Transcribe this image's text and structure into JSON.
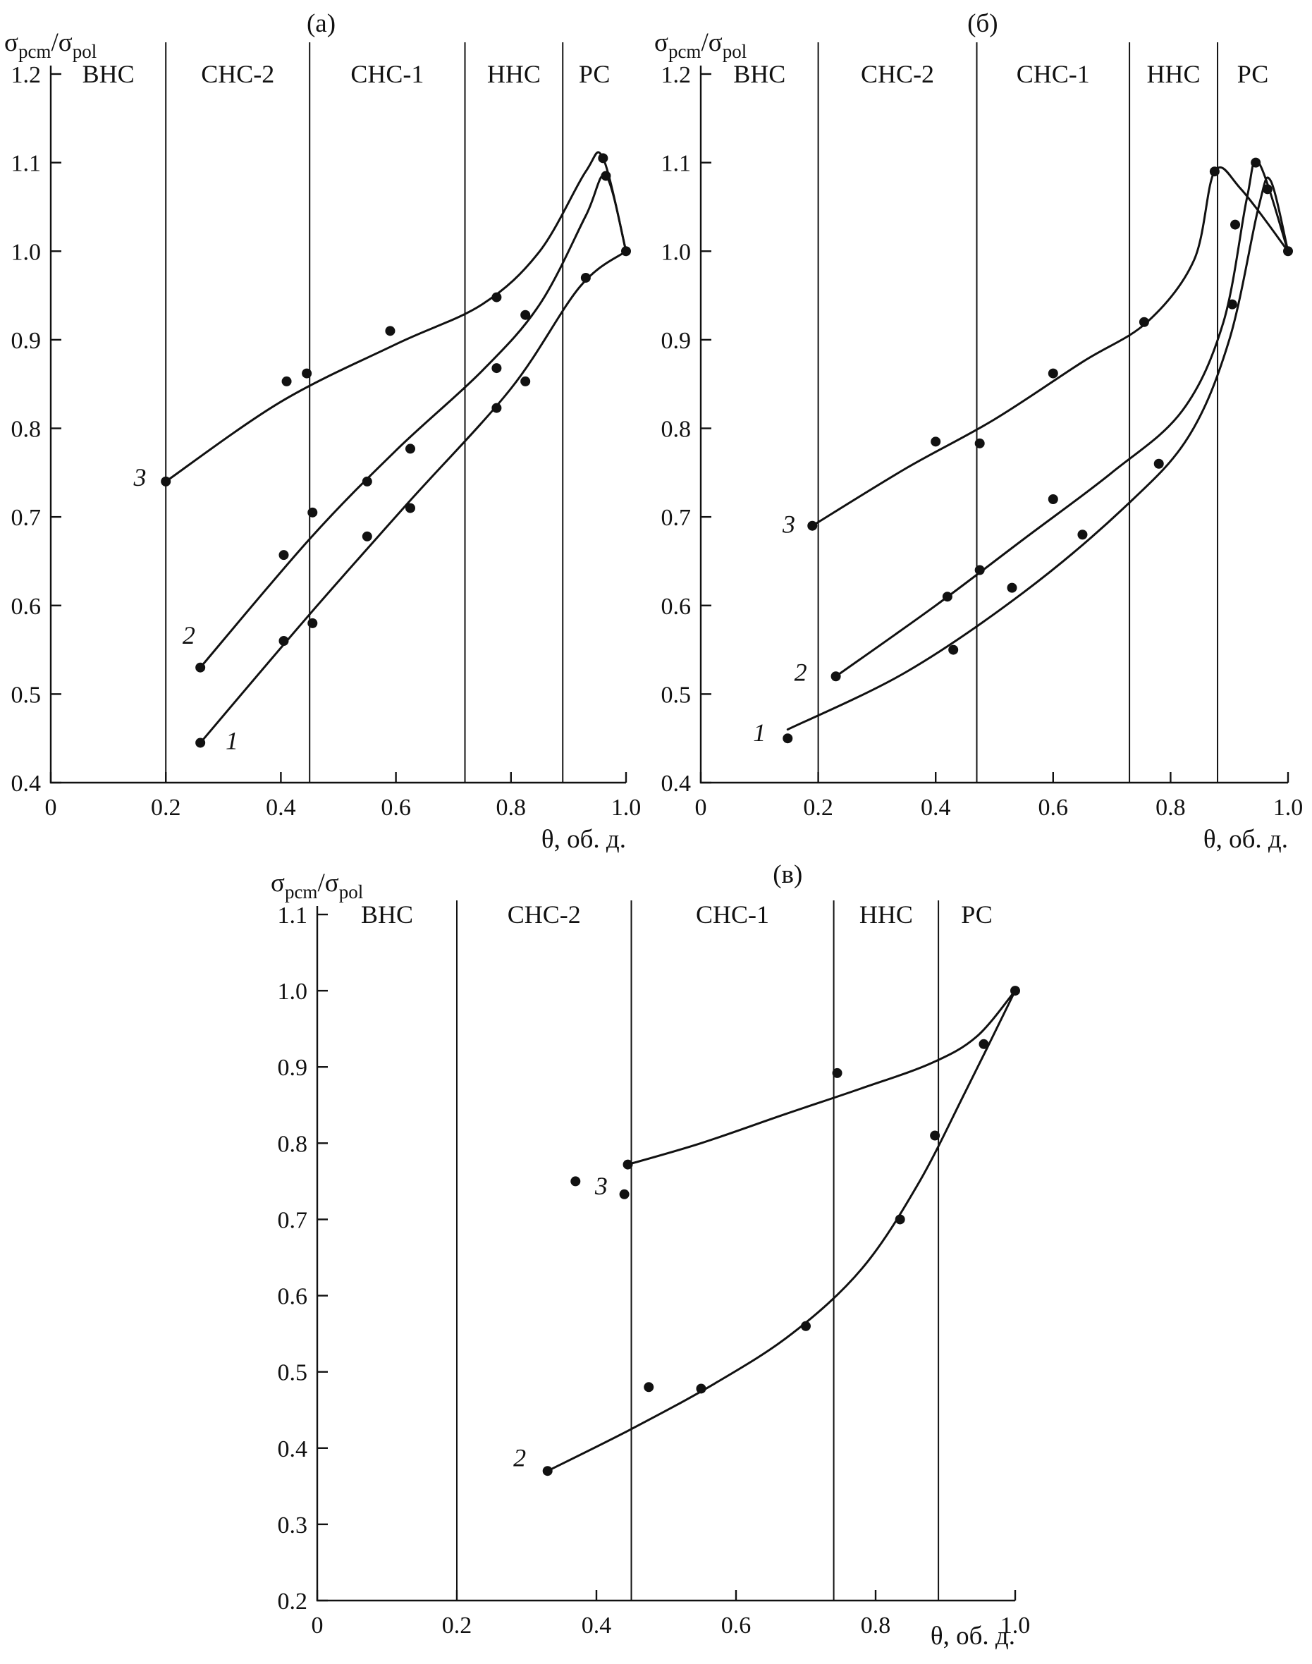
{
  "figure": {
    "panel_titles": [
      "(а)",
      "(б)",
      "(в)"
    ],
    "ink_color": "#111111",
    "background_color": "#ffffff"
  },
  "chart_data": [
    {
      "id": "a",
      "type": "scatter",
      "title": "(а)",
      "ylabel": "σ_{pcm}/σ_{pol}",
      "xlabel": "θ, об. д.",
      "xlim": [
        0,
        1.0
      ],
      "ylim": [
        0.4,
        1.2
      ],
      "x_ticks": [
        "0",
        "0.2",
        "0.4",
        "0.6",
        "0.8",
        "1.0"
      ],
      "y_ticks": [
        "0.4",
        "0.5",
        "0.6",
        "0.7",
        "0.8",
        "0.9",
        "1.0",
        "1.1",
        "1.2"
      ],
      "grid": false,
      "legend": "inline-curve-numbers",
      "region_boundaries": [
        0.2,
        0.45,
        0.72,
        0.89
      ],
      "region_labels": [
        "ВНС",
        "СНС-2",
        "СНС-1",
        "ННС",
        "РС"
      ],
      "series": [
        {
          "label": "1",
          "label_pos": [
            0.315,
            0.438
          ],
          "points": [
            [
              0.26,
              0.445
            ],
            [
              0.405,
              0.56
            ],
            [
              0.455,
              0.58
            ],
            [
              0.55,
              0.678
            ],
            [
              0.625,
              0.71
            ],
            [
              0.775,
              0.823
            ],
            [
              0.825,
              0.853
            ],
            [
              0.93,
              0.97
            ],
            [
              1.0,
              1.0
            ]
          ],
          "curve": [
            [
              0.26,
              0.445
            ],
            [
              0.45,
              0.59
            ],
            [
              0.62,
              0.715
            ],
            [
              0.8,
              0.845
            ],
            [
              0.92,
              0.96
            ],
            [
              1.0,
              1.0
            ]
          ]
        },
        {
          "label": "2",
          "label_pos": [
            0.24,
            0.557
          ],
          "points": [
            [
              0.26,
              0.53
            ],
            [
              0.405,
              0.657
            ],
            [
              0.455,
              0.705
            ],
            [
              0.55,
              0.74
            ],
            [
              0.625,
              0.777
            ],
            [
              0.775,
              0.868
            ],
            [
              0.825,
              0.928
            ],
            [
              0.965,
              1.085
            ]
          ],
          "curve": [
            [
              0.26,
              0.53
            ],
            [
              0.45,
              0.675
            ],
            [
              0.6,
              0.775
            ],
            [
              0.75,
              0.865
            ],
            [
              0.85,
              0.94
            ],
            [
              0.93,
              1.04
            ],
            [
              0.965,
              1.085
            ],
            [
              1.0,
              1.0
            ]
          ]
        },
        {
          "label": "3",
          "label_pos": [
            0.155,
            0.735
          ],
          "points": [
            [
              0.2,
              0.74
            ],
            [
              0.41,
              0.853
            ],
            [
              0.445,
              0.862
            ],
            [
              0.59,
              0.91
            ],
            [
              0.775,
              0.948
            ],
            [
              0.96,
              1.105
            ]
          ],
          "curve": [
            [
              0.2,
              0.74
            ],
            [
              0.4,
              0.83
            ],
            [
              0.6,
              0.895
            ],
            [
              0.75,
              0.94
            ],
            [
              0.85,
              1.0
            ],
            [
              0.93,
              1.09
            ],
            [
              0.96,
              1.105
            ],
            [
              1.0,
              1.0
            ]
          ]
        }
      ]
    },
    {
      "id": "b",
      "type": "scatter",
      "title": "(б)",
      "ylabel": "σ_{pcm}/σ_{pol}",
      "xlabel": "θ, об. д.",
      "xlim": [
        0,
        1.0
      ],
      "ylim": [
        0.4,
        1.2
      ],
      "x_ticks": [
        "0",
        "0.2",
        "0.4",
        "0.6",
        "0.8",
        "1.0"
      ],
      "y_ticks": [
        "0.4",
        "0.5",
        "0.6",
        "0.7",
        "0.8",
        "0.9",
        "1.0",
        "1.1",
        "1.2"
      ],
      "grid": false,
      "legend": "inline-curve-numbers",
      "region_boundaries": [
        0.2,
        0.47,
        0.73,
        0.88
      ],
      "region_labels": [
        "ВНС",
        "СНС-2",
        "СНС-1",
        "ННС",
        "РС"
      ],
      "series": [
        {
          "label": "1",
          "label_pos": [
            0.1,
            0.447
          ],
          "points": [
            [
              0.148,
              0.45
            ],
            [
              0.43,
              0.55
            ],
            [
              0.53,
              0.62
            ],
            [
              0.65,
              0.68
            ],
            [
              0.78,
              0.76
            ],
            [
              0.905,
              0.94
            ],
            [
              0.965,
              1.07
            ]
          ],
          "curve": [
            [
              0.148,
              0.46
            ],
            [
              0.35,
              0.525
            ],
            [
              0.55,
              0.615
            ],
            [
              0.72,
              0.71
            ],
            [
              0.83,
              0.79
            ],
            [
              0.9,
              0.9
            ],
            [
              0.95,
              1.05
            ],
            [
              0.97,
              1.08
            ],
            [
              1.0,
              1.0
            ]
          ]
        },
        {
          "label": "2",
          "label_pos": [
            0.17,
            0.515
          ],
          "points": [
            [
              0.23,
              0.52
            ],
            [
              0.42,
              0.61
            ],
            [
              0.475,
              0.64
            ],
            [
              0.6,
              0.72
            ],
            [
              0.91,
              1.03
            ],
            [
              0.945,
              1.1
            ]
          ],
          "curve": [
            [
              0.23,
              0.52
            ],
            [
              0.4,
              0.6
            ],
            [
              0.55,
              0.675
            ],
            [
              0.7,
              0.75
            ],
            [
              0.82,
              0.82
            ],
            [
              0.89,
              0.92
            ],
            [
              0.93,
              1.06
            ],
            [
              0.95,
              1.1
            ],
            [
              1.0,
              1.0
            ]
          ]
        },
        {
          "label": "3",
          "label_pos": [
            0.15,
            0.682
          ],
          "points": [
            [
              0.19,
              0.69
            ],
            [
              0.4,
              0.785
            ],
            [
              0.475,
              0.783
            ],
            [
              0.6,
              0.862
            ],
            [
              0.755,
              0.92
            ],
            [
              0.875,
              1.09
            ],
            [
              1.0,
              1.0
            ]
          ],
          "curve": [
            [
              0.19,
              0.69
            ],
            [
              0.35,
              0.755
            ],
            [
              0.5,
              0.81
            ],
            [
              0.65,
              0.875
            ],
            [
              0.76,
              0.92
            ],
            [
              0.84,
              0.99
            ],
            [
              0.875,
              1.09
            ],
            [
              0.92,
              1.07
            ],
            [
              1.0,
              1.0
            ]
          ]
        }
      ]
    },
    {
      "id": "v",
      "type": "scatter",
      "title": "(в)",
      "ylabel": "σ_{pcm}/σ_{pol}",
      "xlabel": "θ, об. д.",
      "xlim": [
        0,
        1.0
      ],
      "ylim": [
        0.2,
        1.1
      ],
      "x_ticks": [
        "0",
        "0.2",
        "0.4",
        "0.6",
        "0.8",
        "1.0"
      ],
      "y_ticks": [
        "0.2",
        "0.3",
        "0.4",
        "0.5",
        "0.6",
        "0.7",
        "0.8",
        "0.9",
        "1.0",
        "1.1"
      ],
      "grid": false,
      "legend": "inline-curve-numbers",
      "region_boundaries": [
        0.2,
        0.45,
        0.74,
        0.89
      ],
      "region_labels": [
        "ВНС",
        "СНС-2",
        "СНС-1",
        "ННС",
        "РС"
      ],
      "series": [
        {
          "label": "2",
          "label_pos": [
            0.29,
            0.376
          ],
          "points": [
            [
              0.33,
              0.37
            ],
            [
              0.475,
              0.48
            ],
            [
              0.55,
              0.478
            ],
            [
              0.7,
              0.56
            ],
            [
              0.835,
              0.7
            ],
            [
              0.885,
              0.81
            ]
          ],
          "curve": [
            [
              0.33,
              0.37
            ],
            [
              0.45,
              0.425
            ],
            [
              0.57,
              0.485
            ],
            [
              0.68,
              0.55
            ],
            [
              0.78,
              0.635
            ],
            [
              0.86,
              0.745
            ],
            [
              0.93,
              0.87
            ],
            [
              1.0,
              1.0
            ]
          ]
        },
        {
          "label": "3",
          "label_pos": [
            0.407,
            0.733
          ],
          "points": [
            [
              0.37,
              0.75
            ],
            [
              0.445,
              0.772
            ],
            [
              0.44,
              0.733
            ],
            [
              0.745,
              0.892
            ],
            [
              0.955,
              0.93
            ],
            [
              1.0,
              1.0
            ]
          ],
          "curve": [
            [
              0.445,
              0.772
            ],
            [
              0.55,
              0.8
            ],
            [
              0.67,
              0.838
            ],
            [
              0.78,
              0.872
            ],
            [
              0.88,
              0.905
            ],
            [
              0.945,
              0.94
            ],
            [
              1.0,
              1.0
            ]
          ]
        }
      ]
    }
  ]
}
